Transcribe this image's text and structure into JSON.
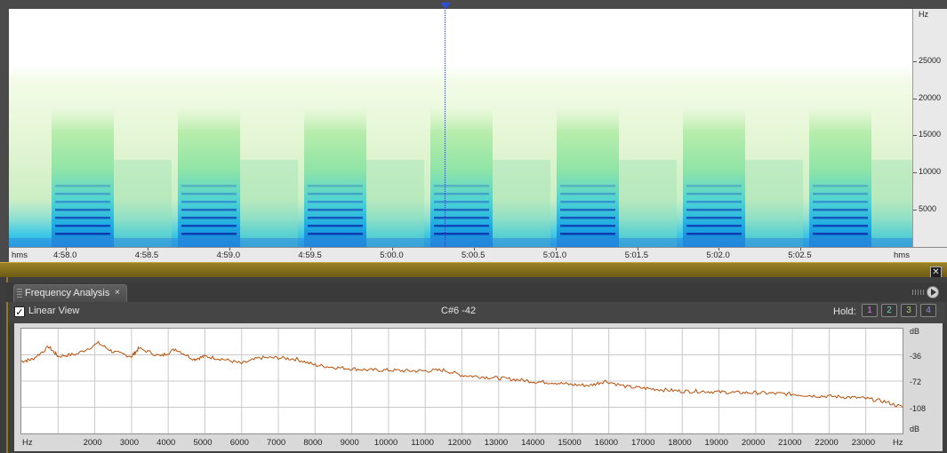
{
  "spectrogram": {
    "hz_unit": "Hz",
    "hz_labels": [
      "25000",
      "20000",
      "15000",
      "10000",
      "5000"
    ],
    "time_unit_left": "hms",
    "time_unit_right": "hms",
    "time_labels": [
      "4:58.0",
      "4:58.5",
      "4:59.0",
      "4:59.5",
      "5:00.0",
      "5:00.5",
      "5:01.0",
      "5:01.5",
      "5:02.0",
      "5:02.5"
    ]
  },
  "panel": {
    "tab_label": "Frequency Analysis",
    "tab_close": "×",
    "close_panel": "✕",
    "linear_view_label": "Linear View",
    "linear_view_checked": true,
    "note_readout": "C#6 -42",
    "hold_label": "Hold:",
    "hold_buttons": [
      {
        "label": "1",
        "color": "#c98ad4"
      },
      {
        "label": "2",
        "color": "#6fd3c0"
      },
      {
        "label": "3",
        "color": "#a8cf63"
      },
      {
        "label": "4",
        "color": "#8f88e6"
      }
    ]
  },
  "icons": {
    "checkbox": "check-icon",
    "play": "play-icon",
    "playhead": "playhead-marker-icon"
  },
  "chart_data": {
    "type": "line",
    "x_unit_label": "Hz",
    "y_unit_label": "dB",
    "x_ticks": [
      "2000",
      "3000",
      "4000",
      "5000",
      "6000",
      "7000",
      "8000",
      "9000",
      "10000",
      "11000",
      "12000",
      "13000",
      "14000",
      "15000",
      "16000",
      "17000",
      "18000",
      "19000",
      "20000",
      "21000",
      "22000",
      "23000"
    ],
    "y_ticks": [
      "-36",
      "-72",
      "-108"
    ],
    "xlim": [
      0,
      24000
    ],
    "ylim": [
      0,
      -144
    ],
    "line_color": "#b8500a",
    "grid": true,
    "x": [
      0,
      300,
      750,
      1000,
      1500,
      2100,
      2500,
      3000,
      3200,
      3800,
      4200,
      4700,
      5000,
      5500,
      6000,
      6500,
      7000,
      7500,
      8000,
      8500,
      9000,
      9500,
      10000,
      10500,
      11000,
      11500,
      12000,
      12500,
      13000,
      13500,
      14000,
      14500,
      15000,
      15500,
      15900,
      16500,
      17000,
      17500,
      18000,
      18500,
      19000,
      19500,
      20000,
      20500,
      21000,
      21500,
      22000,
      22500,
      23000,
      23500,
      24000
    ],
    "y": [
      -45,
      -42,
      -25,
      -38,
      -35,
      -20,
      -32,
      -38,
      -27,
      -38,
      -28,
      -42,
      -38,
      -42,
      -48,
      -40,
      -40,
      -42,
      -50,
      -53,
      -55,
      -57,
      -57,
      -58,
      -58,
      -57,
      -64,
      -66,
      -68,
      -70,
      -73,
      -74,
      -77,
      -78,
      -72,
      -80,
      -82,
      -84,
      -86,
      -86,
      -87,
      -88,
      -88,
      -89,
      -90,
      -92,
      -93,
      -94,
      -96,
      -100,
      -108
    ]
  }
}
